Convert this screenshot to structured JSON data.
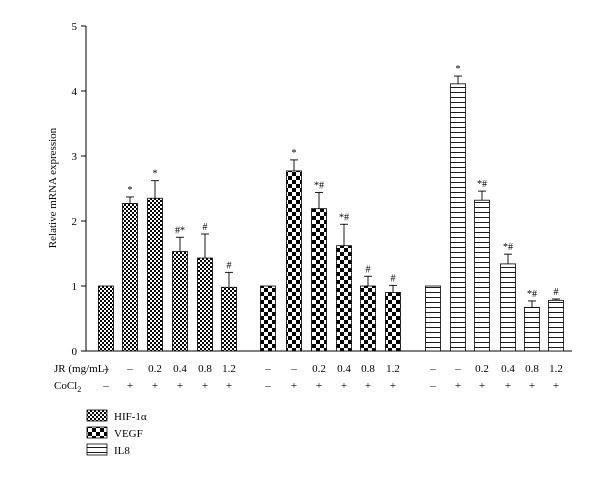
{
  "chart_data": {
    "type": "bar",
    "ylabel": "Relative mRNA expression",
    "ylim": [
      0,
      5
    ],
    "yticks": [
      "0",
      "1",
      "2",
      "3",
      "4",
      "5"
    ],
    "grid": false,
    "legend_position": "bottom-left",
    "condition_rows": [
      {
        "label": "JR (mg/mL)",
        "values": [
          "–",
          "–",
          "0.2",
          "0.4",
          "0.8",
          "1.2"
        ]
      },
      {
        "label": "CoCl",
        "label_sub": "2",
        "values": [
          "–",
          "+",
          "+",
          "+",
          "+",
          "+"
        ]
      }
    ],
    "series": [
      {
        "name": "HIF-1α",
        "pattern": "checker-small",
        "values": [
          1.0,
          2.27,
          2.35,
          1.53,
          1.43,
          0.98
        ],
        "errors": [
          0,
          0.1,
          0.27,
          0.22,
          0.37,
          0.23
        ],
        "annotations": [
          "",
          "*",
          "*",
          "#*",
          "#",
          "#"
        ]
      },
      {
        "name": "VEGF",
        "pattern": "checker-large",
        "values": [
          1.0,
          2.77,
          2.19,
          1.62,
          1.0,
          0.9
        ],
        "errors": [
          0,
          0.17,
          0.25,
          0.33,
          0.15,
          0.11
        ],
        "annotations": [
          "",
          "*",
          "*#",
          "*#",
          "#",
          "#"
        ]
      },
      {
        "name": "IL8",
        "pattern": "hstripes",
        "values": [
          1.0,
          4.11,
          2.32,
          1.34,
          0.67,
          0.78
        ],
        "errors": [
          0,
          0.12,
          0.14,
          0.15,
          0.1,
          0.02
        ],
        "annotations": [
          "",
          "*",
          "*#",
          "*#",
          "*#",
          "#"
        ]
      }
    ]
  },
  "colors": {
    "ink": "#000000",
    "fill": "#ffffff"
  }
}
